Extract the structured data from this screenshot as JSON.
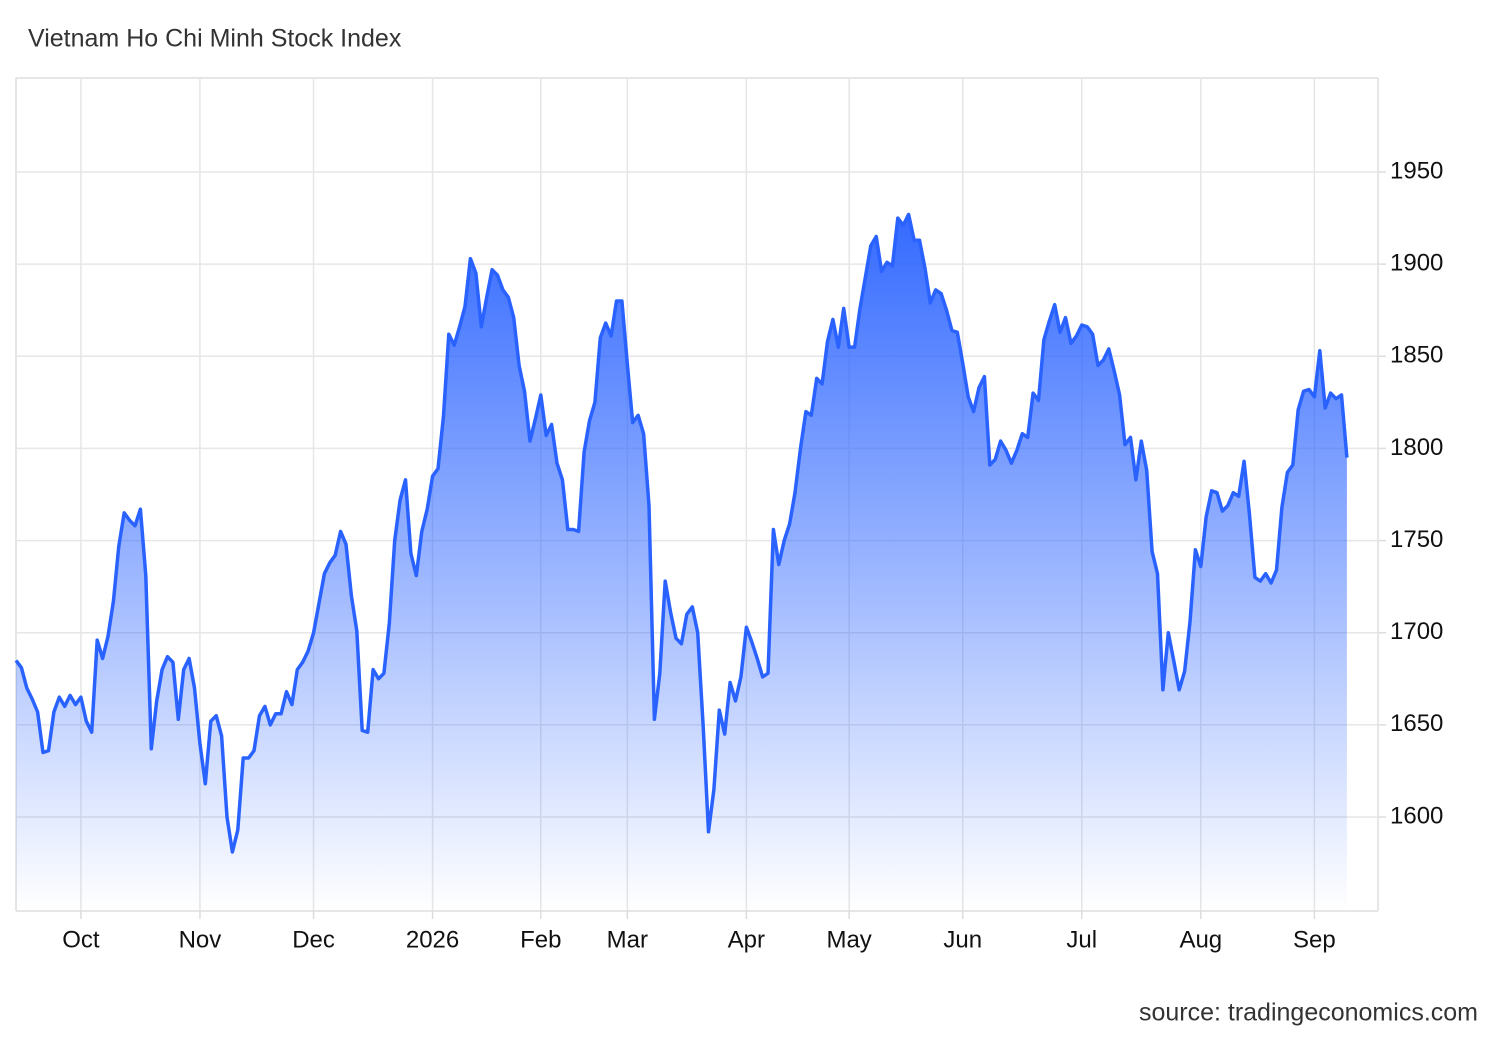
{
  "chart_data": {
    "type": "area",
    "title": "Vietnam Ho Chi Minh Stock Index",
    "source": "source: tradingeconomics.com",
    "color": "#2962ff",
    "grid": true,
    "categories": [
      null,
      null,
      null,
      null,
      null,
      null,
      null,
      null,
      null,
      null,
      null,
      null,
      "Oct",
      null,
      null,
      null,
      null,
      null,
      null,
      null,
      null,
      null,
      null,
      null,
      null,
      null,
      null,
      null,
      null,
      null,
      null,
      null,
      null,
      null,
      "Nov",
      null,
      null,
      null,
      null,
      null,
      null,
      null,
      null,
      null,
      null,
      null,
      null,
      null,
      null,
      null,
      null,
      null,
      null,
      null,
      null,
      "Dec",
      null,
      null,
      null,
      null,
      null,
      null,
      null,
      null,
      null,
      null,
      null,
      null,
      null,
      null,
      null,
      null,
      null,
      null,
      null,
      null,
      null,
      "2026",
      null,
      null,
      null,
      null,
      null,
      null,
      null,
      null,
      null,
      null,
      null,
      null,
      null,
      null,
      null,
      null,
      null,
      null,
      null,
      "Feb",
      null,
      null,
      null,
      null,
      null,
      null,
      null,
      null,
      null,
      null,
      null,
      null,
      null,
      null,
      null,
      "Mar",
      null,
      null,
      null,
      null,
      null,
      null,
      null,
      null,
      null,
      null,
      null,
      null,
      null,
      null,
      null,
      null,
      null,
      null,
      null,
      null,
      null,
      "Apr",
      null,
      null,
      null,
      null,
      null,
      null,
      null,
      null,
      null,
      null,
      null,
      null,
      null,
      null,
      null,
      null,
      null,
      null,
      "May",
      null,
      null,
      null,
      null,
      null,
      null,
      null,
      null,
      null,
      null,
      null,
      null,
      null,
      null,
      null,
      null,
      null,
      null,
      null,
      null,
      "Jun",
      null,
      null,
      null,
      null,
      null,
      null,
      null,
      null,
      null,
      null,
      null,
      null,
      null,
      null,
      null,
      null,
      null,
      null,
      null,
      null,
      null,
      "Jul",
      null,
      null,
      null,
      null,
      null,
      null,
      null,
      null,
      null,
      null,
      null,
      null,
      null,
      null,
      null,
      null,
      null,
      null,
      null,
      null,
      null,
      "Aug",
      null,
      null,
      null,
      null,
      null,
      null,
      null,
      null,
      null,
      null,
      null,
      null,
      null,
      null,
      null,
      null,
      null,
      null,
      null,
      null,
      "Sep",
      null,
      null,
      null,
      null,
      null,
      null
    ],
    "values": [
      1685,
      1681,
      1670,
      1664,
      1657,
      1635,
      1636,
      1657,
      1665,
      1660,
      1666,
      1661,
      1665,
      1652,
      1646,
      1696,
      1686,
      1698,
      1717,
      1747,
      1765,
      1761,
      1758,
      1767,
      1731,
      1637,
      1663,
      1680,
      1687,
      1684,
      1653,
      1680,
      1686,
      1670,
      1640,
      1618,
      1652,
      1655,
      1644,
      1600,
      1581,
      1593,
      1632,
      1632,
      1636,
      1655,
      1660,
      1650,
      1656,
      1656,
      1668,
      1661,
      1680,
      1684,
      1690,
      1700,
      1716,
      1732,
      1738,
      1742,
      1755,
      1748,
      1720,
      1701,
      1647,
      1646,
      1680,
      1675,
      1678,
      1705,
      1750,
      1772,
      1783,
      1743,
      1731,
      1755,
      1767,
      1785,
      1789,
      1817,
      1862,
      1856,
      1866,
      1877,
      1903,
      1895,
      1866,
      1882,
      1897,
      1894,
      1886,
      1882,
      1871,
      1845,
      1831,
      1804,
      1816,
      1829,
      1807,
      1813,
      1792,
      1783,
      1756,
      1756,
      1755,
      1798,
      1815,
      1825,
      1860,
      1868,
      1861,
      1880,
      1880,
      1846,
      1814,
      1818,
      1808,
      1769,
      1653,
      1678,
      1728,
      1711,
      1697,
      1694,
      1710,
      1714,
      1700,
      1650,
      1592,
      1615,
      1658,
      1645,
      1673,
      1663,
      1676,
      1703,
      1695,
      1686,
      1676,
      1678,
      1756,
      1737,
      1750,
      1759,
      1776,
      1800,
      1820,
      1818,
      1838,
      1835,
      1858,
      1870,
      1855,
      1876,
      1855,
      1855,
      1876,
      1893,
      1910,
      1915,
      1896,
      1901,
      1899,
      1925,
      1921,
      1927,
      1913,
      1913,
      1898,
      1879,
      1886,
      1884,
      1875,
      1864,
      1863,
      1846,
      1828,
      1820,
      1833,
      1839,
      1791,
      1794,
      1804,
      1799,
      1792,
      1799,
      1808,
      1806,
      1830,
      1826,
      1859,
      1869,
      1878,
      1863,
      1871,
      1857,
      1861,
      1867,
      1866,
      1862,
      1845,
      1848,
      1854,
      1842,
      1829,
      1802,
      1806,
      1783,
      1804,
      1788,
      1744,
      1732,
      1669,
      1700,
      1685,
      1669,
      1679,
      1706,
      1745,
      1736,
      1763,
      1777,
      1776,
      1766,
      1769,
      1776,
      1774,
      1793,
      1764,
      1730,
      1728,
      1732,
      1727,
      1734,
      1768,
      1787,
      1791,
      1821,
      1831,
      1832,
      1828,
      1853,
      1822,
      1830,
      1827,
      1829,
      1795
    ],
    "ylim": [
      1549,
      2001
    ],
    "yticks": [
      1600,
      1650,
      1700,
      1750,
      1800,
      1850,
      1900,
      1950
    ]
  }
}
